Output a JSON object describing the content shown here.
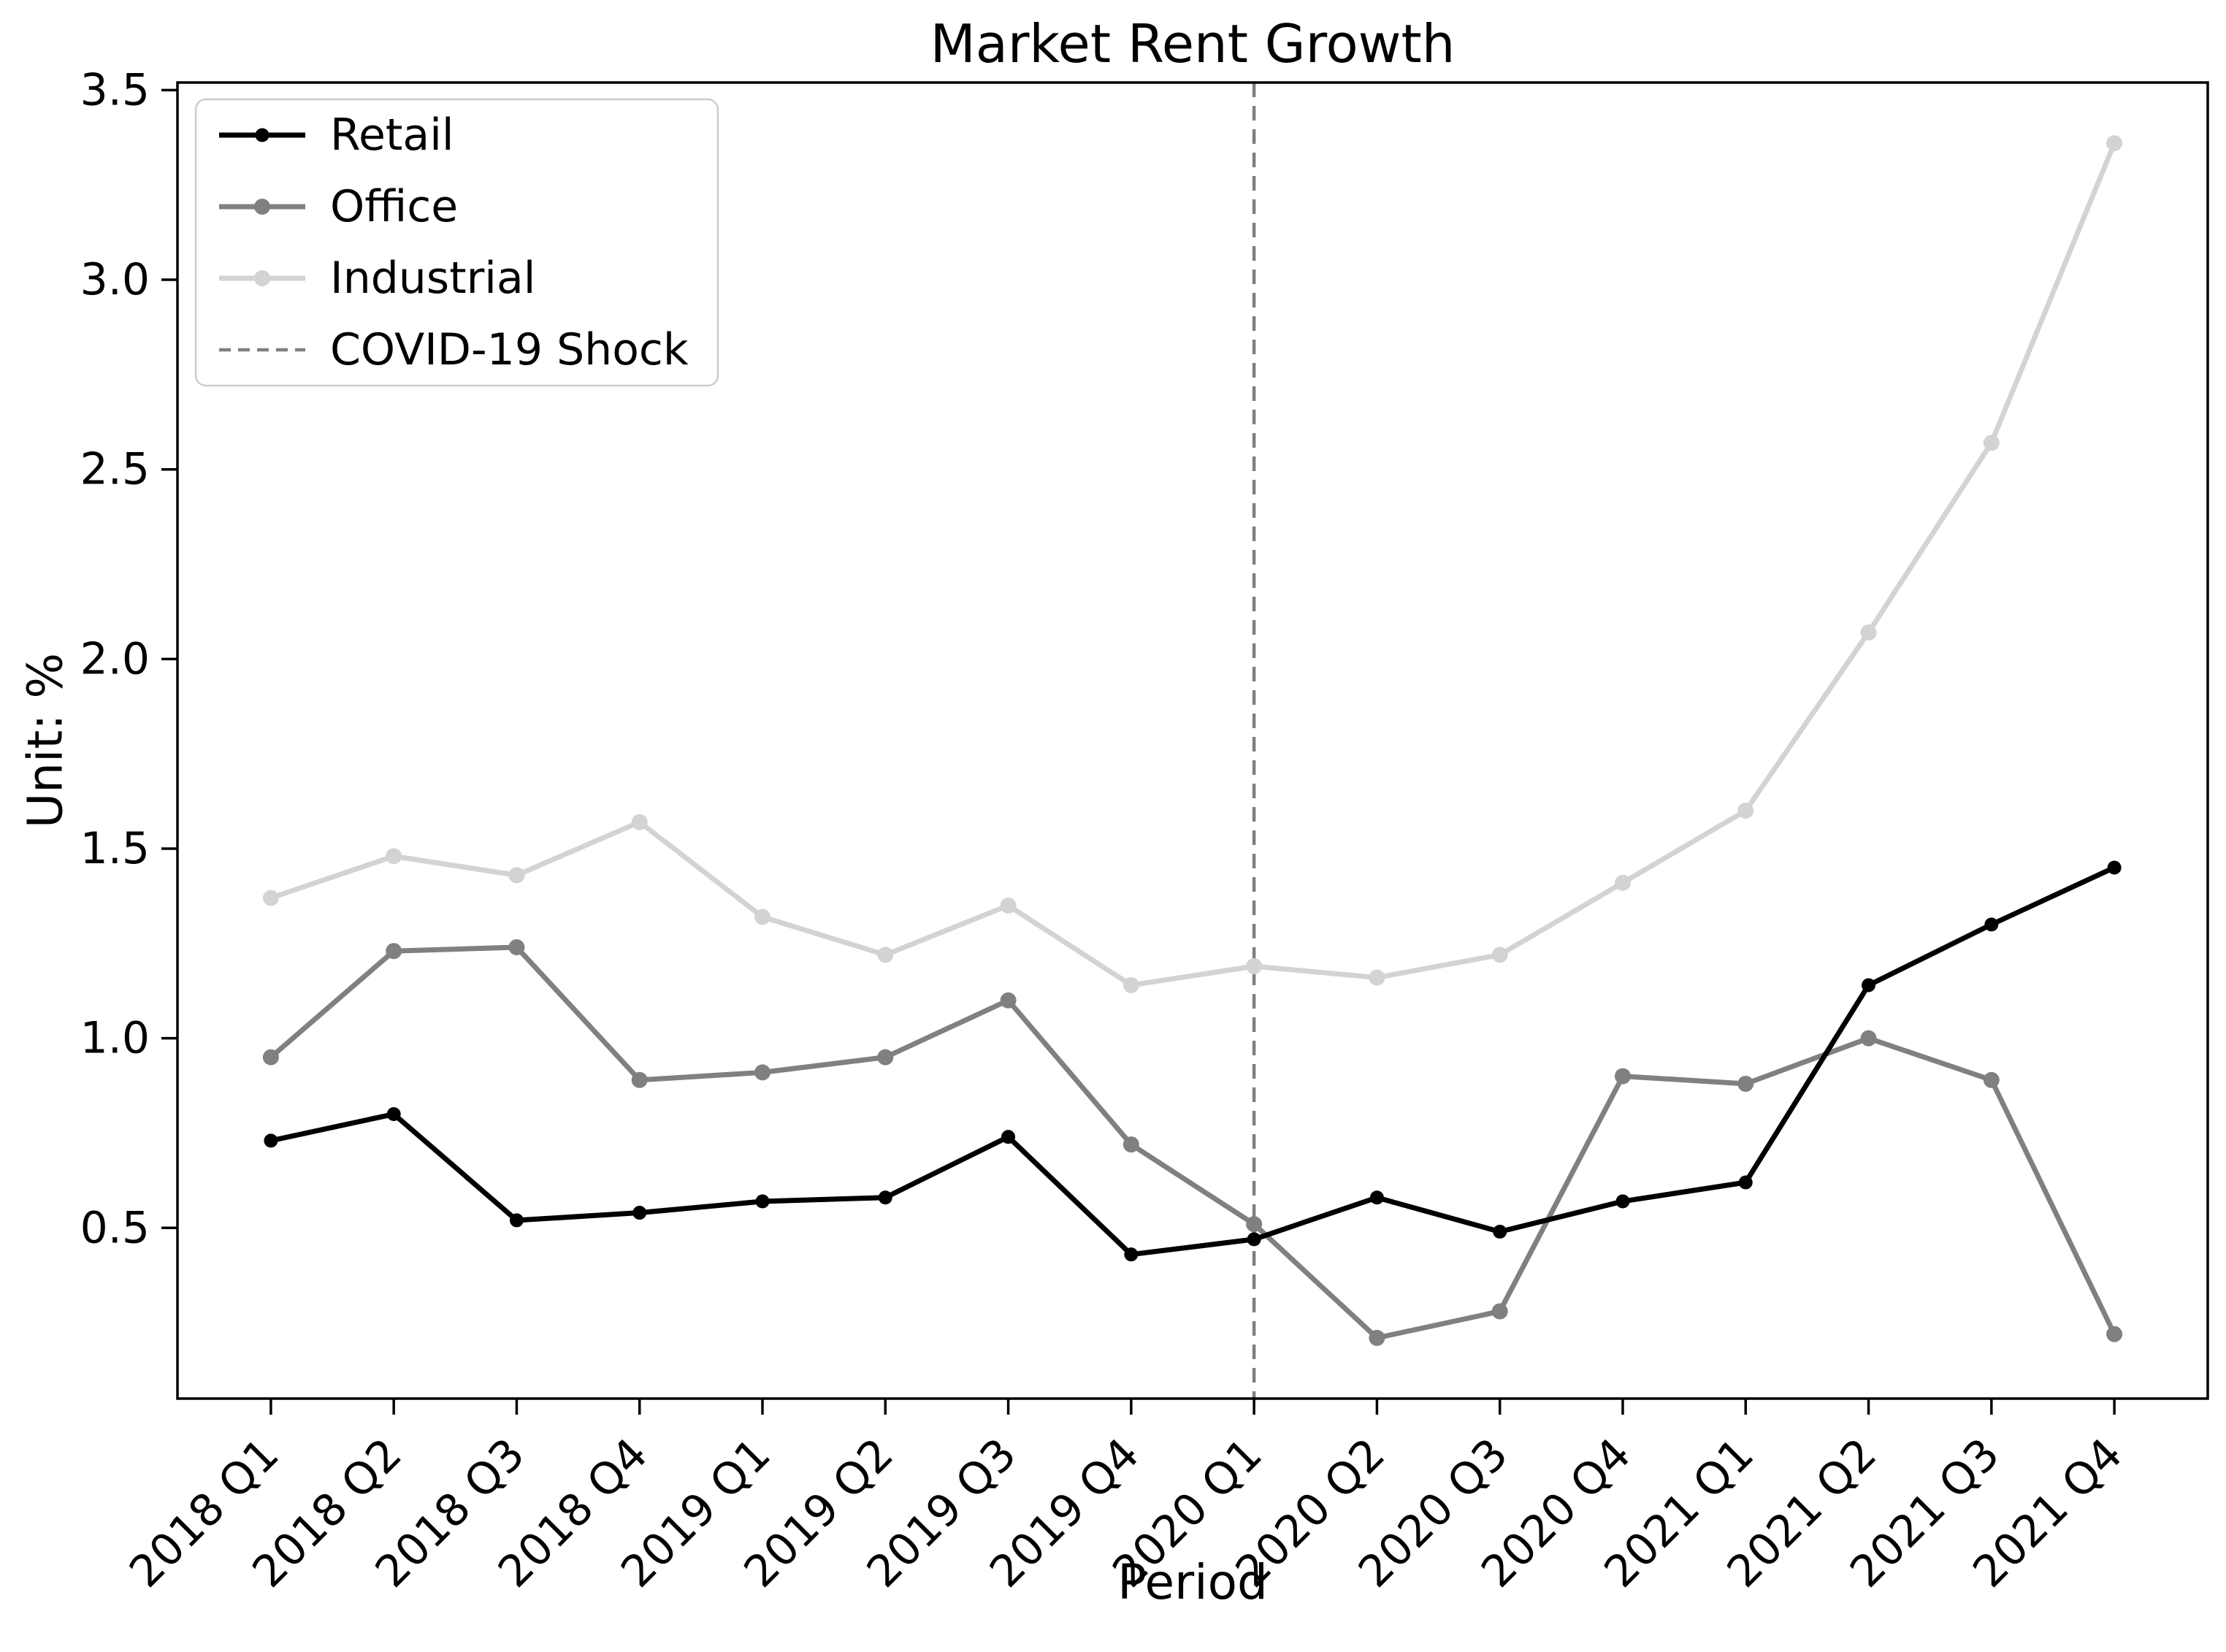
{
  "figure": {
    "title": "Market Rent Growth",
    "xlabel": "Period",
    "ylabel": "Unit: %"
  },
  "chart_data": {
    "type": "line",
    "title": "Market Rent Growth",
    "xlabel": "Period",
    "ylabel": "Unit: %",
    "categories": [
      "2018 Q1",
      "2018 Q2",
      "2018 Q3",
      "2018 Q4",
      "2019 Q1",
      "2019 Q2",
      "2019 Q3",
      "2019 Q4",
      "2020 Q1",
      "2020 Q2",
      "2020 Q3",
      "2020 Q4",
      "2021 Q1",
      "2021 Q2",
      "2021 Q3",
      "2021 Q4"
    ],
    "series": [
      {
        "name": "Industrial",
        "color": "#d3d3d3",
        "values": [
          1.37,
          1.48,
          1.43,
          1.57,
          1.32,
          1.22,
          1.35,
          1.14,
          1.19,
          1.16,
          1.22,
          1.41,
          1.6,
          2.07,
          2.57,
          3.36
        ]
      },
      {
        "name": "Office",
        "color": "#808080",
        "values": [
          0.95,
          1.23,
          1.24,
          0.89,
          0.91,
          0.95,
          1.1,
          0.72,
          0.51,
          0.21,
          0.28,
          0.9,
          0.88,
          1.0,
          0.89,
          0.22
        ]
      },
      {
        "name": "Retail",
        "color": "#000000",
        "values": [
          0.73,
          0.8,
          0.52,
          0.54,
          0.57,
          0.58,
          0.74,
          0.43,
          0.47,
          0.58,
          0.49,
          0.57,
          0.62,
          1.14,
          1.3,
          1.45
        ]
      }
    ],
    "legend_order": [
      "Retail",
      "Office",
      "Industrial",
      "COVID-19 Shock"
    ],
    "annotations": [
      {
        "type": "vline",
        "label": "COVID-19 Shock",
        "at_category": "2020 Q1",
        "color": "#7f7f7f",
        "style": "dashed"
      }
    ],
    "yticks": [
      0.5,
      1.0,
      1.5,
      2.0,
      2.5,
      3.0,
      3.5
    ],
    "ylim": [
      0.05,
      3.52
    ],
    "grid": false,
    "legend_position": "upper left"
  }
}
